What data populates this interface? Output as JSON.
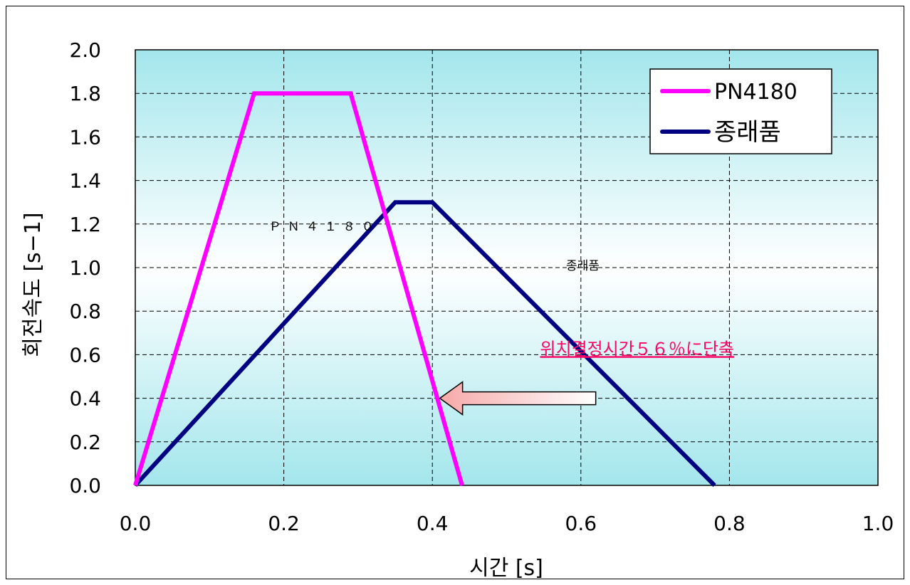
{
  "chart_data": {
    "type": "line",
    "xlabel": "시간 [s]",
    "ylabel": "회전속도 [s−1]",
    "xlim": [
      0,
      1.0
    ],
    "ylim": [
      0,
      2.0
    ],
    "xticks": [
      "0.0",
      "0.2",
      "0.4",
      "0.6",
      "0.8",
      "1.0"
    ],
    "yticks": [
      "0.0",
      "0.2",
      "0.4",
      "0.6",
      "0.8",
      "1.0",
      "1.2",
      "1.4",
      "1.6",
      "1.8",
      "2.0"
    ],
    "grid": true,
    "legend_position": "top-right",
    "series": [
      {
        "name": "PN4180",
        "color": "#ff00ff",
        "x": [
          0.0,
          0.16,
          0.29,
          0.44
        ],
        "y": [
          0.0,
          1.8,
          1.8,
          0.0
        ]
      },
      {
        "name": "종래품",
        "color": "#000080",
        "x": [
          0.0,
          0.35,
          0.4,
          0.78
        ],
        "y": [
          0.0,
          1.3,
          1.3,
          0.0
        ]
      }
    ],
    "annotations": [
      {
        "text": "ＰＮ４１８０",
        "x": 0.18,
        "y": 1.17
      },
      {
        "text": "종래품",
        "x": 0.58,
        "y": 0.99
      },
      {
        "text": "위치결정시간５６％に단축",
        "x": 0.545,
        "y": 0.6,
        "color": "#ff0066"
      }
    ],
    "arrow": {
      "x_from": 0.62,
      "x_to": 0.41,
      "y": 0.4
    },
    "plot_background": "#aee8ee"
  }
}
